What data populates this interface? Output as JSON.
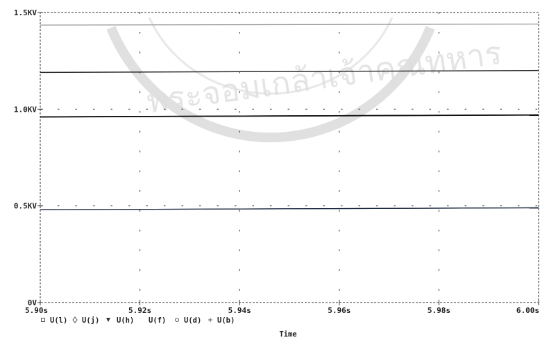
{
  "chart_data": {
    "type": "line",
    "x_ticks": [
      "5.90s",
      "5.92s",
      "5.94s",
      "5.96s",
      "5.98s",
      "6.00s"
    ],
    "y_ticks": [
      "0V",
      "0.5KV",
      "1.0KV",
      "1.5KV"
    ],
    "xlim": [
      5.9,
      6.0
    ],
    "ylim": [
      0,
      1.5
    ],
    "y_unit": "KV",
    "xlabel": "Time",
    "grid": "dotted",
    "legend_placement": "bottom-left",
    "series": [
      {
        "name": "U(l)",
        "marker": "square",
        "x": [
          5.9,
          6.0
        ],
        "y": [
          1.435,
          1.44
        ]
      },
      {
        "name": "U(j)",
        "marker": "diamond",
        "x": [
          5.9,
          6.0
        ],
        "y": [
          1.19,
          1.2
        ]
      },
      {
        "name": "U(h)",
        "marker": "triangle-down",
        "x": [
          5.9,
          6.0
        ],
        "y": [
          0.96,
          0.97
        ]
      },
      {
        "name": "U(f)",
        "marker": "none",
        "x": [
          5.9,
          6.0
        ],
        "y": [
          0.96,
          0.97
        ]
      },
      {
        "name": "U(d)",
        "marker": "circle",
        "x": [
          5.9,
          6.0
        ],
        "y": [
          0.48,
          0.49
        ]
      },
      {
        "name": "U(b)",
        "marker": "plus",
        "x": [
          5.9,
          6.0
        ],
        "y": [
          0.48,
          0.49
        ]
      }
    ]
  },
  "watermark": {
    "text": "พระจอมเกล้าเจ้าคุณทหาร"
  }
}
